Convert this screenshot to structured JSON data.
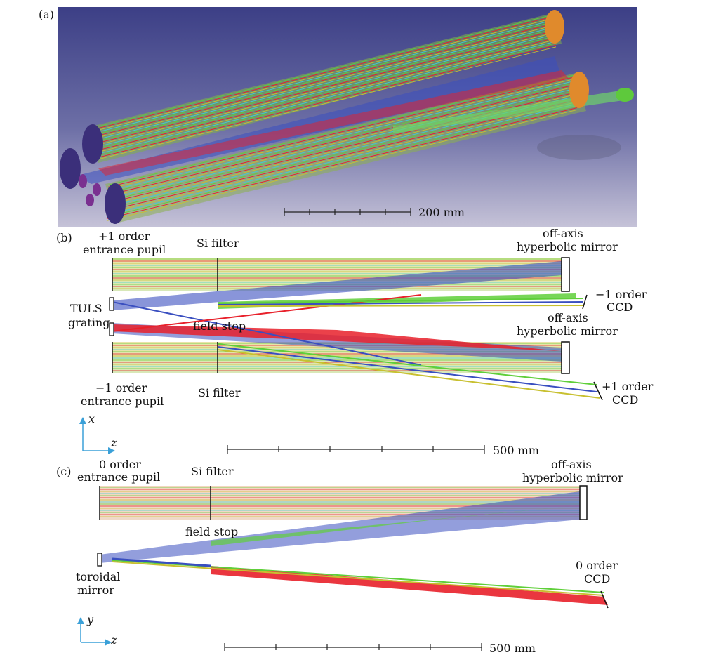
{
  "panels": {
    "a": {
      "label": "(a)",
      "scale_text": "200 mm"
    },
    "b": {
      "label": "(b)",
      "plus_pupil": [
        "+1 order",
        "entrance pupil"
      ],
      "si_filter_top": "Si filter",
      "mirror_top": [
        "off-axis",
        "hyperbolic mirror"
      ],
      "minus_ccd": [
        "−1 order",
        "CCD"
      ],
      "grating": [
        "TULS",
        "grating"
      ],
      "field_stop": "field stop",
      "mirror_bottom": [
        "off-axis",
        "hyperbolic mirror"
      ],
      "minus_pupil": [
        "−1 order",
        "entrance pupil"
      ],
      "si_filter_bottom": "Si filter",
      "plus_ccd": [
        "+1 order",
        "CCD"
      ],
      "axis_vertical": "x",
      "axis_horizontal": "z",
      "scale_text": "500 mm"
    },
    "c": {
      "label": "(c)",
      "zero_pupil": [
        "0 order",
        "entrance pupil"
      ],
      "si_filter": "Si filter",
      "mirror": [
        "off-axis",
        "hyperbolic mirror"
      ],
      "field_stop": "field stop",
      "toroidal": [
        "toroidal",
        "mirror"
      ],
      "zero_ccd": [
        "0 order",
        "CCD"
      ],
      "axis_vertical": "y",
      "axis_horizontal": "z",
      "scale_text": "500 mm"
    }
  },
  "colors": {
    "ray_green": "#5fcf3a",
    "ray_red": "#e8202a",
    "ray_blue": "#3a4fc0",
    "ray_yellow": "#c8c030",
    "ray_cyan": "#40d0d0",
    "axis_arrow": "#3aa0d8",
    "bg_top": "#3c3f86",
    "bg_bottom": "#bfbcd3",
    "mirror_orange": "#e08a2c",
    "pupil_purple": "#3b2f7a"
  }
}
